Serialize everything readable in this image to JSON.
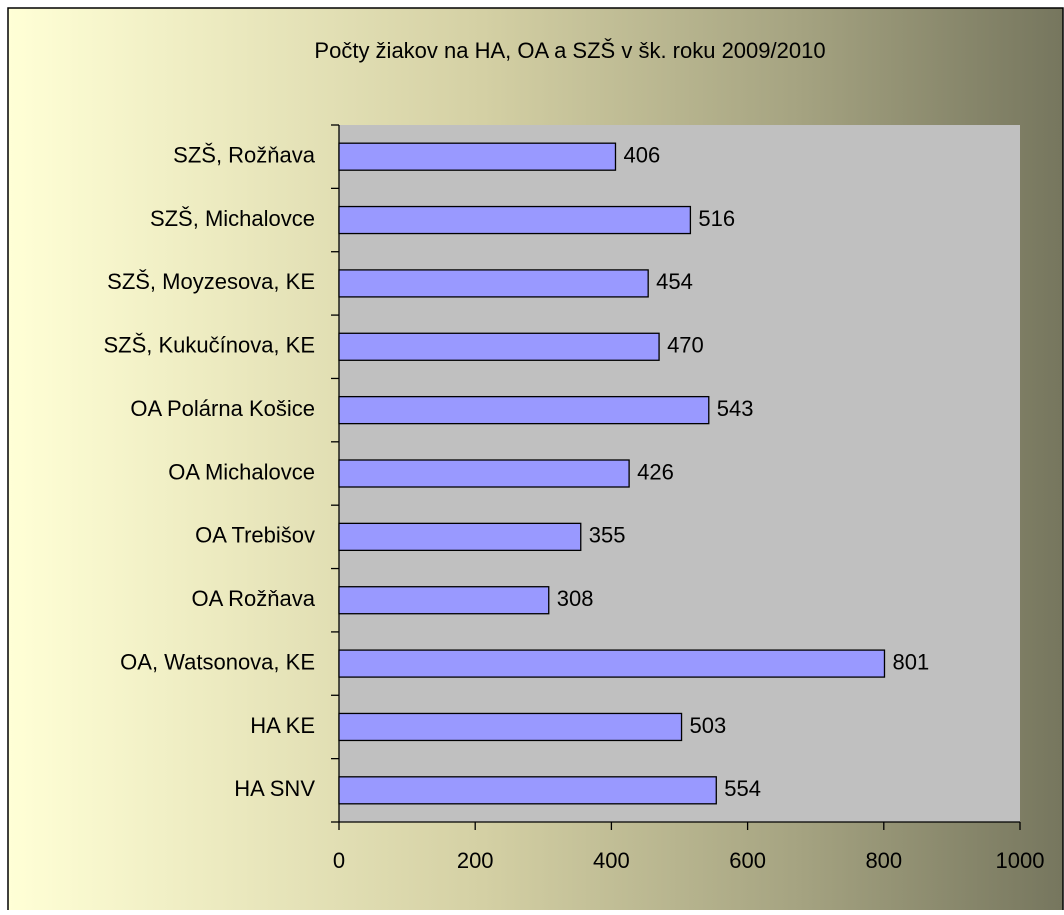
{
  "chart_data": {
    "type": "bar",
    "orientation": "horizontal",
    "title": "Počty žiakov na HA, OA a SZŠ v šk. roku 2009/2010",
    "categories": [
      "SZŠ, Rožňava",
      "SZŠ, Michalovce",
      "SZŠ, Moyzesova, KE",
      "SZŠ, Kukučínova, KE",
      "OA Polárna Košice",
      "OA Michalovce",
      "OA Trebišov",
      "OA Rožňava",
      "OA, Watsonova, KE",
      "HA KE",
      "HA SNV"
    ],
    "values": [
      406,
      516,
      454,
      470,
      543,
      426,
      355,
      308,
      801,
      503,
      554
    ],
    "color": "#9999ff",
    "xlim": [
      0,
      1000
    ],
    "xticks": [
      0,
      200,
      400,
      600,
      800,
      1000
    ],
    "grid": false
  }
}
